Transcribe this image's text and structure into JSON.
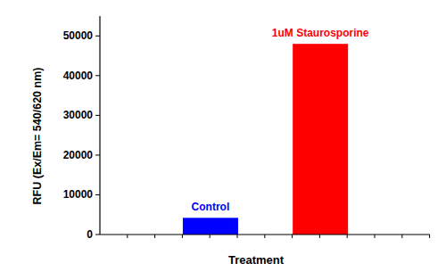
{
  "chart_data": {
    "type": "bar",
    "x_label": "Treatment",
    "y_label": "RFU (Ex/Em= 540/620 nm)",
    "categories": [
      "Control",
      "1uM Staurosporine"
    ],
    "values": [
      4200,
      48000
    ],
    "colors": [
      "#0000ff",
      "#ff0000"
    ],
    "ylim": [
      0,
      55000
    ],
    "yticks": [
      0,
      10000,
      20000,
      30000,
      40000,
      50000
    ],
    "grid": false
  }
}
